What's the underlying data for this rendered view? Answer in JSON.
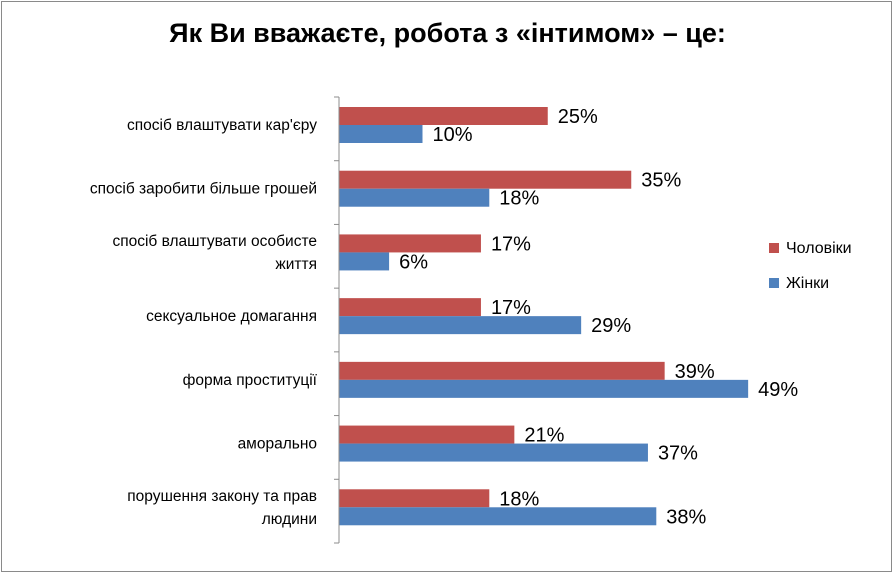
{
  "chart_data": {
    "type": "bar",
    "orientation": "horizontal",
    "title": "Як Ви вважаєте, робота з «інтимом» – це:",
    "categories": [
      [
        "спосіб влаштувати кар'єру"
      ],
      [
        "спосіб заробити більше грошей"
      ],
      [
        "спосіб влаштувати особисте",
        "життя"
      ],
      [
        "сексуальное домагання"
      ],
      [
        "форма проституції"
      ],
      [
        "аморально"
      ],
      [
        "порушення закону та прав",
        "людини"
      ]
    ],
    "series": [
      {
        "name": "Чоловіки",
        "color": "#C0504D",
        "values": [
          25,
          35,
          17,
          17,
          39,
          21,
          18
        ],
        "labels": [
          "25%",
          "35%",
          "17%",
          "17%",
          "39%",
          "21%",
          "18%"
        ]
      },
      {
        "name": "Жінки",
        "color": "#4F81BD",
        "values": [
          10,
          18,
          6,
          29,
          49,
          37,
          38
        ],
        "labels": [
          "10%",
          "18%",
          "6%",
          "29%",
          "49%",
          "37%",
          "38%"
        ]
      }
    ],
    "value_unit": "%",
    "xlim": [
      0,
      55
    ],
    "grid": false,
    "legend_position": "right"
  }
}
